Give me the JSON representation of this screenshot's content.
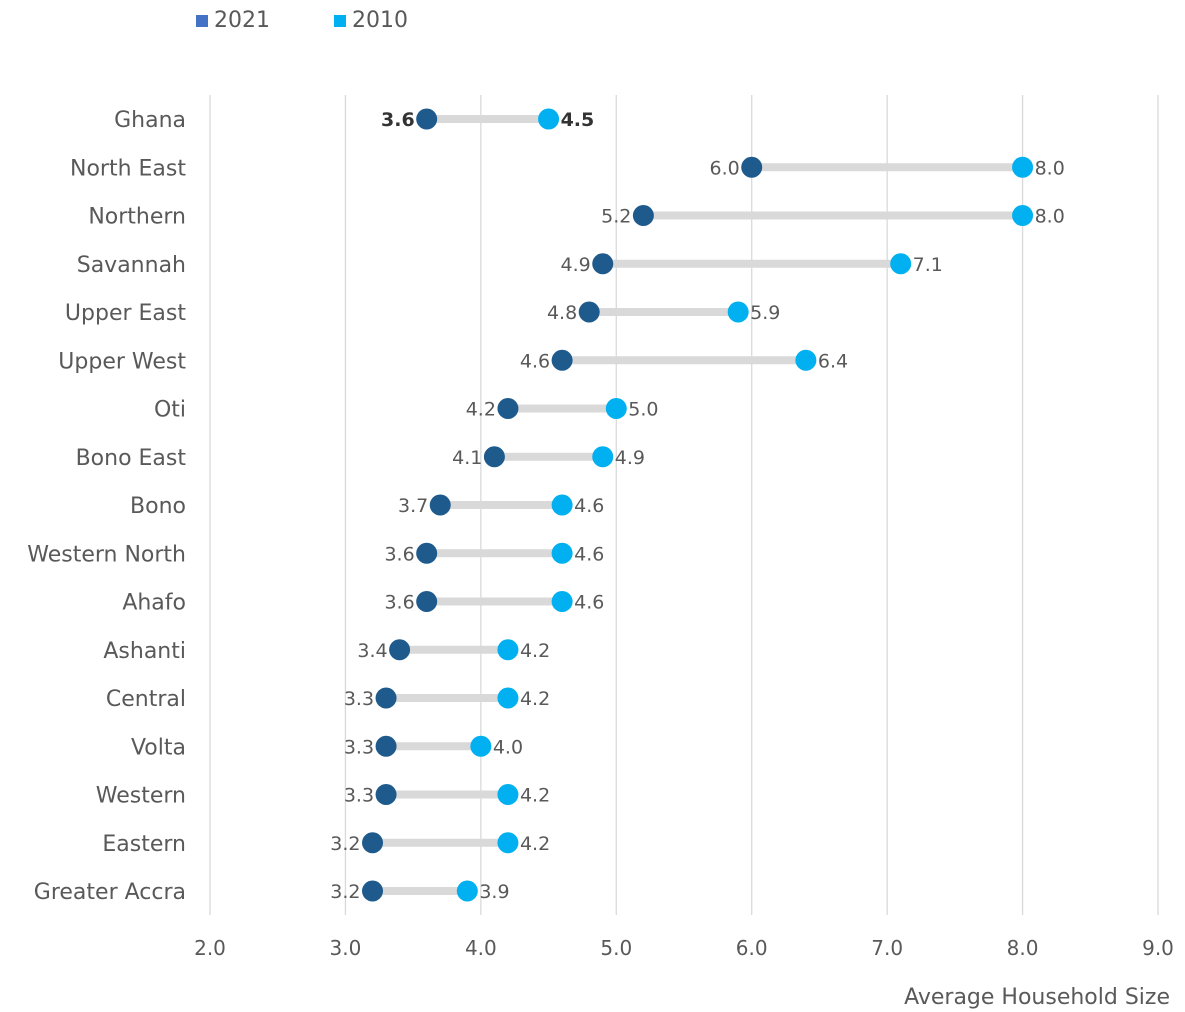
{
  "chart_data": {
    "type": "dumbbell",
    "xlabel": "Average Household Size",
    "xlim": [
      2.0,
      9.0
    ],
    "x_ticks": [
      "2.0",
      "3.0",
      "4.0",
      "5.0",
      "6.0",
      "7.0",
      "8.0",
      "9.0"
    ],
    "grid": "vertical",
    "legend_position": "top-left",
    "colors": {
      "2021": "#1f5a8c",
      "2010": "#00b0f0",
      "connector": "#d9d9d9",
      "legend_2021": "#4472c4"
    },
    "categories": [
      "Ghana",
      "North East",
      "Northern",
      "Savannah",
      "Upper East",
      "Upper West",
      "Oti",
      "Bono East",
      "Bono",
      "Western North",
      "Ahafo",
      "Ashanti",
      "Central",
      "Volta",
      "Western",
      "Eastern",
      "Greater Accra"
    ],
    "series": [
      {
        "name": "2021",
        "values": [
          3.6,
          6.0,
          5.2,
          4.9,
          4.8,
          4.6,
          4.2,
          4.1,
          3.7,
          3.6,
          3.6,
          3.4,
          3.3,
          3.3,
          3.3,
          3.2,
          3.2
        ]
      },
      {
        "name": "2010",
        "values": [
          4.5,
          8.0,
          8.0,
          7.1,
          5.9,
          6.4,
          5.0,
          4.9,
          4.6,
          4.6,
          4.6,
          4.2,
          4.2,
          4.0,
          4.2,
          4.2,
          3.9
        ]
      }
    ],
    "bold_categories": [
      "Ghana"
    ]
  }
}
